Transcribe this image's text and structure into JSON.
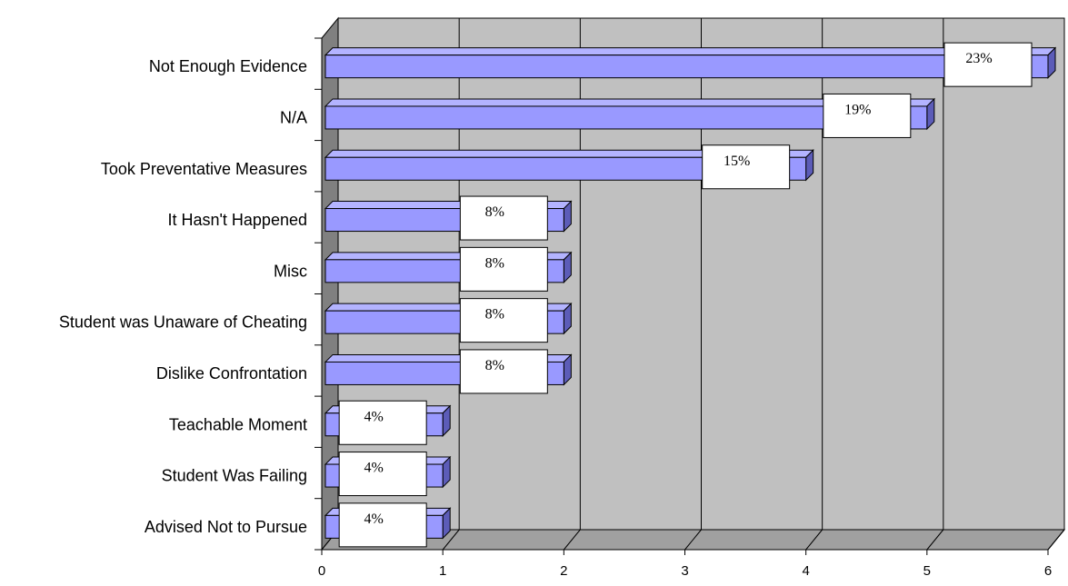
{
  "chart_data": {
    "type": "bar",
    "orientation": "horizontal",
    "style": "3d",
    "categories": [
      "Not Enough Evidence",
      "N/A",
      "Took Preventative Measures",
      "It Hasn't Happened",
      "Misc",
      "Student was Unaware of Cheating",
      "Dislike Confrontation",
      "Teachable Moment",
      "Student Was Failing",
      "Advised Not to Pursue"
    ],
    "values": [
      6,
      5,
      4,
      2,
      2,
      2,
      2,
      1,
      1,
      1
    ],
    "data_labels": [
      "23%",
      "19%",
      "15%",
      "8%",
      "8%",
      "8%",
      "8%",
      "4%",
      "4%",
      "4%"
    ],
    "xlim": [
      0,
      6
    ],
    "x_ticks": [
      "0",
      "1",
      "2",
      "3",
      "4",
      "5",
      "6"
    ],
    "title": "",
    "xlabel": "",
    "ylabel": "",
    "grid": true,
    "legend": "none",
    "colors": {
      "bar_front": "#9999ff",
      "bar_top": "#b3b3ff",
      "bar_side": "#5c5cb8",
      "plot_back": "#c0c0c0",
      "floor_wall": "#808080",
      "grid": "#000000"
    }
  }
}
